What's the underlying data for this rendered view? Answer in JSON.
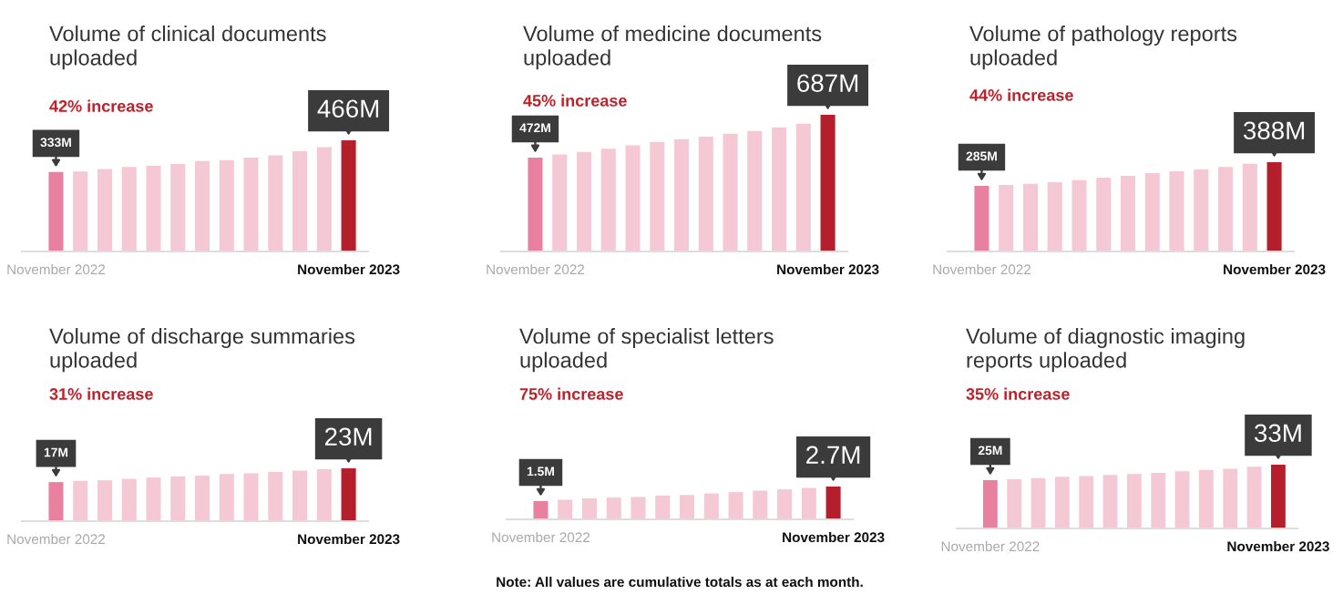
{
  "chart_data": [
    {
      "type": "bar",
      "title": "Volume of clinical documents\nuploaded",
      "subtitle": "42% increase",
      "categories": [
        "November 2022",
        null,
        null,
        null,
        null,
        null,
        null,
        null,
        null,
        null,
        null,
        null,
        "November 2023"
      ],
      "values": [
        333,
        335,
        346,
        354,
        359,
        367,
        379,
        383,
        393,
        403,
        420,
        437,
        466
      ],
      "colors": [
        "#e8819f",
        "#f5c8d6",
        "#f5c8d6",
        "#f5c8d6",
        "#f5c8d6",
        "#f5c8d6",
        "#f5c8d6",
        "#f5c8d6",
        "#f5c8d6",
        "#f5c8d6",
        "#f5c8d6",
        "#f5c8d6",
        "#b41f2b"
      ],
      "value_labels": [
        "333M",
        null,
        null,
        null,
        null,
        null,
        null,
        null,
        null,
        null,
        null,
        null,
        "466M"
      ],
      "tick_labels": "x"
    },
    {
      "type": "bar",
      "title": "Volume of medicine documents\nuploaded",
      "subtitle": "45% increase",
      "categories": [
        "November 2022",
        null,
        null,
        null,
        null,
        null,
        null,
        null,
        null,
        null,
        null,
        null,
        "November 2023"
      ],
      "values": [
        472,
        488,
        500,
        516,
        533,
        551,
        565,
        577,
        592,
        606,
        624,
        642,
        687
      ],
      "colors": [
        "#e8819f",
        "#f5c8d6",
        "#f5c8d6",
        "#f5c8d6",
        "#f5c8d6",
        "#f5c8d6",
        "#f5c8d6",
        "#f5c8d6",
        "#f5c8d6",
        "#f5c8d6",
        "#f5c8d6",
        "#f5c8d6",
        "#b41f2b"
      ],
      "value_labels": [
        "472M",
        null,
        null,
        null,
        null,
        null,
        null,
        null,
        null,
        null,
        null,
        null,
        "687M"
      ],
      "tick_labels": "x"
    },
    {
      "type": "bar",
      "title": "Volume of pathology reports\nuploaded",
      "subtitle": "44% increase",
      "categories": [
        "November 2022",
        null,
        null,
        null,
        null,
        null,
        null,
        null,
        null,
        null,
        null,
        null,
        "November 2023"
      ],
      "values": [
        285,
        289,
        294,
        301,
        310,
        321,
        329,
        340,
        348,
        356,
        367,
        381,
        388
      ],
      "colors": [
        "#e8819f",
        "#f5c8d6",
        "#f5c8d6",
        "#f5c8d6",
        "#f5c8d6",
        "#f5c8d6",
        "#f5c8d6",
        "#f5c8d6",
        "#f5c8d6",
        "#f5c8d6",
        "#f5c8d6",
        "#f5c8d6",
        "#b41f2b"
      ],
      "value_labels": [
        "285M",
        null,
        null,
        null,
        null,
        null,
        null,
        null,
        null,
        null,
        null,
        null,
        "388M"
      ],
      "tick_labels": "x"
    },
    {
      "type": "bar",
      "title": "Volume of discharge summaries\nuploaded",
      "subtitle": "31% increase",
      "categories": [
        "November 2022",
        null,
        null,
        null,
        null,
        null,
        null,
        null,
        null,
        null,
        null,
        null,
        "November 2023"
      ],
      "values": [
        17,
        17.5,
        17.8,
        18.4,
        19.0,
        19.5,
        19.8,
        20.5,
        20.8,
        21.4,
        22.0,
        22.6,
        23
      ],
      "colors": [
        "#e8819f",
        "#f5c8d6",
        "#f5c8d6",
        "#f5c8d6",
        "#f5c8d6",
        "#f5c8d6",
        "#f5c8d6",
        "#f5c8d6",
        "#f5c8d6",
        "#f5c8d6",
        "#f5c8d6",
        "#f5c8d6",
        "#b41f2b"
      ],
      "value_labels": [
        "17M",
        null,
        null,
        null,
        null,
        null,
        null,
        null,
        null,
        null,
        null,
        null,
        "23M"
      ],
      "tick_labels": "x"
    },
    {
      "type": "bar",
      "title": "Volume of specialist letters\nuploaded",
      "subtitle": "75% increase",
      "categories": [
        "November 2022",
        null,
        null,
        null,
        null,
        null,
        null,
        null,
        null,
        null,
        null,
        null,
        "November 2023"
      ],
      "values": [
        1.5,
        1.61,
        1.73,
        1.79,
        1.84,
        1.96,
        2.01,
        2.13,
        2.24,
        2.36,
        2.47,
        2.59,
        2.7
      ],
      "colors": [
        "#e8819f",
        "#f5c8d6",
        "#f5c8d6",
        "#f5c8d6",
        "#f5c8d6",
        "#f5c8d6",
        "#f5c8d6",
        "#f5c8d6",
        "#f5c8d6",
        "#f5c8d6",
        "#f5c8d6",
        "#f5c8d6",
        "#b41f2b"
      ],
      "value_labels": [
        "1.5M",
        null,
        null,
        null,
        null,
        null,
        null,
        null,
        null,
        null,
        null,
        null,
        "2.7M"
      ],
      "tick_labels": "x",
      "annotations": [
        "Note: All values are cumulative totals as at each month."
      ]
    },
    {
      "type": "bar",
      "title": "Volume of diagnostic imaging\nreports uploaded",
      "subtitle": "35% increase",
      "categories": [
        "November 2022",
        null,
        null,
        null,
        null,
        null,
        null,
        null,
        null,
        null,
        null,
        null,
        "November 2023"
      ],
      "values": [
        25,
        25.4,
        26.1,
        26.8,
        27.1,
        27.7,
        28.2,
        28.7,
        29.6,
        30.3,
        30.9,
        31.9,
        33
      ],
      "colors": [
        "#e8819f",
        "#f5c8d6",
        "#f5c8d6",
        "#f5c8d6",
        "#f5c8d6",
        "#f5c8d6",
        "#f5c8d6",
        "#f5c8d6",
        "#f5c8d6",
        "#f5c8d6",
        "#f5c8d6",
        "#f5c8d6",
        "#b41f2b"
      ],
      "value_labels": [
        "25M",
        null,
        null,
        null,
        null,
        null,
        null,
        null,
        null,
        null,
        null,
        null,
        "33M"
      ],
      "tick_labels": "x"
    }
  ]
}
